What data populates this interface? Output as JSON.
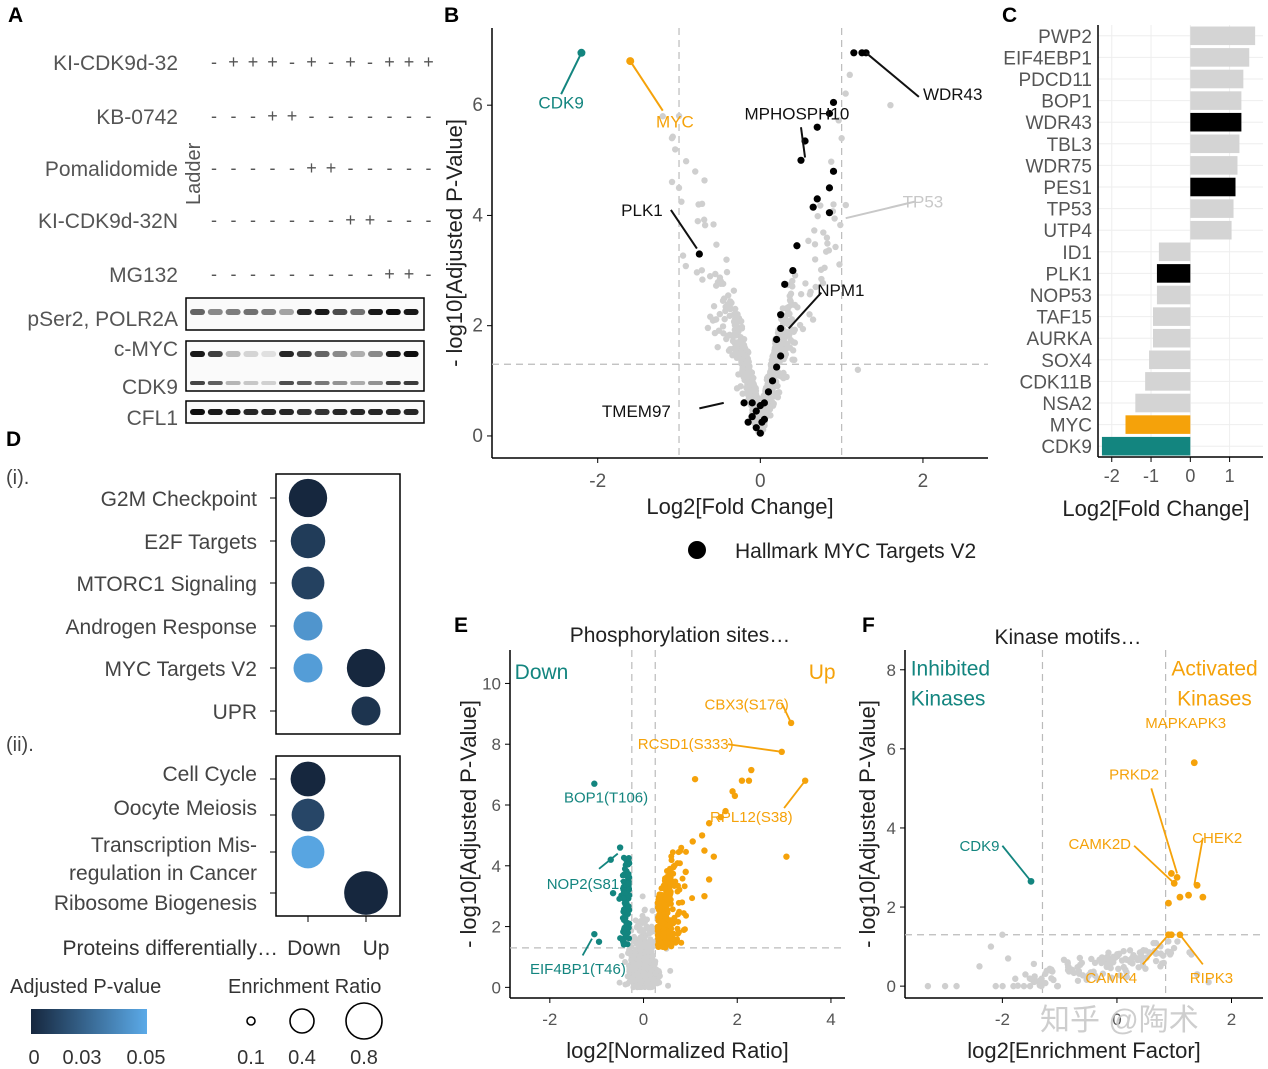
{
  "watermark": "知乎 @陶术",
  "legend_shared": {
    "marker_label": "Hallmark MYC Targets V2"
  },
  "panelA": {
    "label": "A",
    "ladder": "Ladder",
    "treatments": [
      {
        "name": "KI-CDK9d-32",
        "signs": [
          "-",
          "+",
          "+",
          "+",
          "-",
          "+",
          "-",
          "+",
          "-",
          "+",
          "+",
          "+"
        ]
      },
      {
        "name": "KB-0742",
        "signs": [
          "-",
          "-",
          "-",
          "+",
          "+",
          "-",
          "-",
          "-",
          "-",
          "-",
          "-",
          "-"
        ]
      },
      {
        "name": "Pomalidomide",
        "signs": [
          "-",
          "-",
          "-",
          "-",
          "-",
          "+",
          "+",
          "-",
          "-",
          "-",
          "-",
          "-"
        ]
      },
      {
        "name": "KI-CDK9d-32N",
        "signs": [
          "-",
          "-",
          "-",
          "-",
          "-",
          "-",
          "-",
          "+",
          "+",
          "-",
          "-",
          "-"
        ]
      },
      {
        "name": "MG132",
        "signs": [
          "-",
          "-",
          "-",
          "-",
          "-",
          "-",
          "-",
          "-",
          "-",
          "+",
          "+",
          "-"
        ]
      }
    ],
    "blots": [
      "pSer2, POLR2A",
      "c-MYC",
      "CDK9",
      "CFL1"
    ]
  },
  "panelB": {
    "label": "B",
    "chart_data": {
      "type": "scatter",
      "xlabel": "Log2[Fold Change]",
      "ylabel": "- log10[Adjusted P-Value]",
      "xlim": [
        -3.3,
        2.8
      ],
      "ylim": [
        -0.4,
        7.4
      ],
      "xticks": [
        -2,
        0,
        2
      ],
      "yticks": [
        0,
        2,
        4,
        6
      ],
      "threshold_x": [
        -1,
        1
      ],
      "threshold_y": 1.3,
      "highlighted": [
        {
          "name": "CDK9",
          "x": -2.2,
          "y": 6.95,
          "group": "cdk9"
        },
        {
          "name": "MYC",
          "x": -1.6,
          "y": 6.8,
          "group": "myc"
        }
      ],
      "labels": [
        {
          "text": "CDK9",
          "x": -2.45,
          "y": 6.05,
          "group": "cdk9"
        },
        {
          "text": "MYC",
          "x": -1.05,
          "y": 5.7,
          "group": "myc"
        },
        {
          "text": "MPHOSPH10",
          "x": 0.45,
          "y": 5.85,
          "group": "target"
        },
        {
          "text": "WDR43",
          "x": 2.0,
          "y": 6.2,
          "group": "target"
        },
        {
          "text": "PLK1",
          "x": -1.2,
          "y": 4.1,
          "group": "target"
        },
        {
          "text": "TP53",
          "x": 2.0,
          "y": 4.25,
          "group": "grey"
        },
        {
          "text": "NPM1",
          "x": 0.7,
          "y": 2.65,
          "group": "target"
        },
        {
          "text": "TMEM97",
          "x": -1.1,
          "y": 0.45,
          "group": "target"
        }
      ],
      "myc_targets": [
        [
          1.15,
          6.95
        ],
        [
          1.25,
          6.95
        ],
        [
          1.3,
          6.95
        ],
        [
          0.9,
          6.05
        ],
        [
          0.85,
          5.85
        ],
        [
          0.7,
          5.6
        ],
        [
          0.55,
          5.35
        ],
        [
          0.5,
          5.0
        ],
        [
          0.9,
          4.8
        ],
        [
          0.85,
          4.5
        ],
        [
          0.7,
          4.3
        ],
        [
          0.65,
          4.15
        ],
        [
          0.85,
          4.05
        ],
        [
          0.45,
          3.45
        ],
        [
          0.4,
          3.0
        ],
        [
          0.3,
          2.75
        ],
        [
          0.25,
          2.2
        ],
        [
          0.25,
          1.95
        ],
        [
          0.2,
          1.75
        ],
        [
          0.25,
          1.45
        ],
        [
          0.2,
          1.25
        ],
        [
          0.15,
          1.0
        ],
        [
          0.1,
          0.8
        ],
        [
          0.05,
          0.6
        ],
        [
          0.0,
          0.55
        ],
        [
          -0.05,
          0.45
        ],
        [
          -0.1,
          0.35
        ],
        [
          -0.15,
          0.25
        ],
        [
          -0.2,
          0.6
        ],
        [
          0.05,
          0.3
        ],
        [
          -0.05,
          0.15
        ],
        [
          0.0,
          0.05
        ],
        [
          -0.1,
          0.6
        ],
        [
          0.02,
          0.25
        ],
        [
          -0.75,
          3.3
        ]
      ]
    }
  },
  "panelC": {
    "label": "C",
    "chart_data": {
      "type": "bar",
      "orientation": "horizontal",
      "xlabel": "Log2[Fold Change]",
      "xticks": [
        -2,
        -1,
        0,
        1
      ],
      "xlim": [
        -2.35,
        1.85
      ],
      "categories": [
        "PWP2",
        "EIF4EBP1",
        "PDCD11",
        "BOP1",
        "WDR43",
        "TBL3",
        "WDR75",
        "PES1",
        "TP53",
        "UTP4",
        "ID1",
        "PLK1",
        "NOP53",
        "TAF15",
        "AURKA",
        "SOX4",
        "CDK11B",
        "NSA2",
        "MYC",
        "CDK9"
      ],
      "values": [
        1.65,
        1.5,
        1.35,
        1.3,
        1.3,
        1.25,
        1.2,
        1.15,
        1.1,
        1.05,
        -0.8,
        -0.85,
        -0.85,
        -0.95,
        -0.95,
        -1.05,
        -1.15,
        -1.4,
        -1.65,
        -2.25
      ],
      "highlight": {
        "WDR43": "target",
        "PES1": "target",
        "PLK1": "target",
        "MYC": "myc",
        "CDK9": "cdk9"
      }
    }
  },
  "panelD": {
    "label": "D",
    "sub_i": "(i).",
    "sub_ii": "(ii).",
    "col_header": "Proteins differentially…",
    "cols": [
      "Down",
      "Up"
    ],
    "terms_i": [
      "G2M Checkpoint",
      "E2F Targets",
      "MTORC1 Signaling",
      "Androgen Response",
      "MYC Targets V2",
      "UPR"
    ],
    "terms_ii": [
      "Cell Cycle",
      "Oocyte Meiosis",
      "Transcription Mis-",
      "regulation in Cancer",
      "Ribosome Biogenesis"
    ],
    "dots_i": [
      {
        "row": 0,
        "col": 0,
        "ratio": 0.48,
        "p": 0.0
      },
      {
        "row": 1,
        "col": 0,
        "ratio": 0.35,
        "p": 0.008
      },
      {
        "row": 2,
        "col": 0,
        "ratio": 0.3,
        "p": 0.01
      },
      {
        "row": 3,
        "col": 0,
        "ratio": 0.2,
        "p": 0.042
      },
      {
        "row": 4,
        "col": 0,
        "ratio": 0.2,
        "p": 0.045
      },
      {
        "row": 4,
        "col": 1,
        "ratio": 0.48,
        "p": 0.0
      },
      {
        "row": 5,
        "col": 1,
        "ratio": 0.2,
        "p": 0.005
      }
    ],
    "dots_ii": [
      {
        "row": 0,
        "col": 0,
        "ratio": 0.36,
        "p": 0.0
      },
      {
        "row": 1,
        "col": 0,
        "ratio": 0.3,
        "p": 0.012
      },
      {
        "row": 2,
        "col": 0,
        "ratio": 0.3,
        "p": 0.048
      },
      {
        "row": 3,
        "col": 1,
        "ratio": 0.8,
        "p": 0.0
      }
    ],
    "pvalue_legend": {
      "title": "Adjusted P-value",
      "ticks": [
        "0",
        "0.03",
        "0.05"
      ]
    },
    "size_legend": {
      "title": "Enrichment Ratio",
      "ticks": [
        "0.1",
        "0.4",
        "0.8"
      ]
    }
  },
  "panelE": {
    "label": "E",
    "chart_data": {
      "type": "scatter",
      "title": "Phosphorylation sites…",
      "down_label": "Down",
      "up_label": "Up",
      "xlabel": "log2[Normalized Ratio]",
      "ylabel": "- log10[Adjusted P-Value]",
      "xlim": [
        -2.85,
        4.3
      ],
      "ylim": [
        -0.35,
        11.1
      ],
      "xticks": [
        -2,
        0,
        2,
        4
      ],
      "yticks": [
        0,
        2,
        4,
        6,
        8,
        10
      ],
      "threshold_x": [
        -0.25,
        0.25
      ],
      "threshold_y": 1.3,
      "labels": [
        {
          "text": "CBX3(S176)",
          "x": 2.2,
          "y": 9.3,
          "group": "up",
          "pt": [
            3.15,
            8.7
          ]
        },
        {
          "text": "RCSD1(S333)",
          "x": 0.9,
          "y": 8.0,
          "group": "up",
          "pt": [
            2.95,
            7.75
          ]
        },
        {
          "text": "BOP1(T106)",
          "x": -0.8,
          "y": 6.25,
          "group": "down",
          "pt": [
            -1.05,
            6.7
          ]
        },
        {
          "text": "RPL12(S38)",
          "x": 2.3,
          "y": 5.6,
          "group": "up",
          "pt": [
            3.45,
            6.8
          ]
        },
        {
          "text": "NOP2(S812)",
          "x": -1.15,
          "y": 3.4,
          "group": "down",
          "pt": [
            -0.55,
            4.4
          ]
        },
        {
          "text": "EIF4BP1(T46)",
          "x": -1.4,
          "y": 0.6,
          "group": "down",
          "pt": [
            -1.1,
            1.6
          ]
        }
      ],
      "extra_up": [
        [
          3.15,
          8.7
        ],
        [
          2.95,
          7.75
        ],
        [
          3.45,
          6.8
        ],
        [
          3.05,
          4.3
        ],
        [
          2.1,
          6.8
        ],
        [
          2.25,
          6.8
        ],
        [
          1.9,
          6.45
        ],
        [
          1.95,
          6.3
        ],
        [
          2.3,
          7.15
        ],
        [
          1.75,
          5.8
        ],
        [
          1.65,
          5.6
        ],
        [
          1.4,
          5.4
        ],
        [
          1.25,
          5.0
        ],
        [
          1.1,
          6.85
        ],
        [
          1.5,
          4.3
        ],
        [
          1.3,
          4.5
        ],
        [
          1.05,
          4.8
        ],
        [
          0.9,
          3.8
        ],
        [
          1.4,
          3.55
        ],
        [
          1.3,
          3.0
        ]
      ],
      "extra_down": [
        [
          -1.05,
          6.7
        ],
        [
          -0.5,
          4.6
        ],
        [
          -1.05,
          1.75
        ],
        [
          -0.95,
          1.5
        ],
        [
          -0.7,
          4.2
        ],
        [
          -0.65,
          3.1
        ]
      ]
    }
  },
  "panelF": {
    "label": "F",
    "chart_data": {
      "type": "scatter",
      "title": "Kinase motifs…",
      "inhibited_label": [
        "Inhibited",
        "Kinases"
      ],
      "activated_label": [
        "Activated",
        "Kinases"
      ],
      "xlabel": "log2[Enrichment Factor]",
      "ylabel": "- log10[Adjusted P-Value]",
      "xlim": [
        -3.7,
        2.55
      ],
      "ylim": [
        -0.3,
        8.5
      ],
      "xticks": [
        -2,
        0,
        2
      ],
      "yticks": [
        0,
        2,
        4,
        6,
        8
      ],
      "threshold_x": [
        -1.3,
        0.85
      ],
      "threshold_y": 1.3,
      "labels": [
        {
          "text": "MAPKAPK3",
          "x": 1.2,
          "y": 6.65,
          "group": "up",
          "pt": [
            1.35,
            5.65
          ]
        },
        {
          "text": "PRKD2",
          "x": 0.3,
          "y": 5.35,
          "group": "up",
          "pt": [
            1.05,
            2.85
          ]
        },
        {
          "text": "CDK9",
          "x": -2.4,
          "y": 3.55,
          "group": "down",
          "pt": [
            -1.5,
            2.65
          ]
        },
        {
          "text": "CAMK2D",
          "x": -0.3,
          "y": 3.6,
          "group": "up",
          "pt": [
            1.0,
            2.6
          ]
        },
        {
          "text": "CHEK2",
          "x": 1.75,
          "y": 3.75,
          "group": "up",
          "pt": [
            1.35,
            2.55
          ]
        },
        {
          "text": "CAMK4",
          "x": -0.1,
          "y": 0.2,
          "group": "up",
          "pt": [
            0.9,
            1.3
          ]
        },
        {
          "text": "RIPK3",
          "x": 1.65,
          "y": 0.2,
          "group": "up",
          "pt": [
            1.1,
            1.3
          ]
        }
      ],
      "extra_up": [
        [
          1.35,
          5.65
        ],
        [
          0.95,
          2.85
        ],
        [
          1.05,
          2.75
        ],
        [
          1.0,
          2.6
        ],
        [
          1.4,
          2.55
        ],
        [
          1.25,
          2.3
        ],
        [
          1.5,
          2.25
        ],
        [
          1.1,
          2.25
        ],
        [
          0.9,
          2.1
        ],
        [
          0.9,
          1.3
        ],
        [
          1.1,
          1.3
        ],
        [
          0.95,
          1.3
        ]
      ],
      "extra_down": [
        [
          -1.5,
          2.65
        ]
      ]
    }
  }
}
